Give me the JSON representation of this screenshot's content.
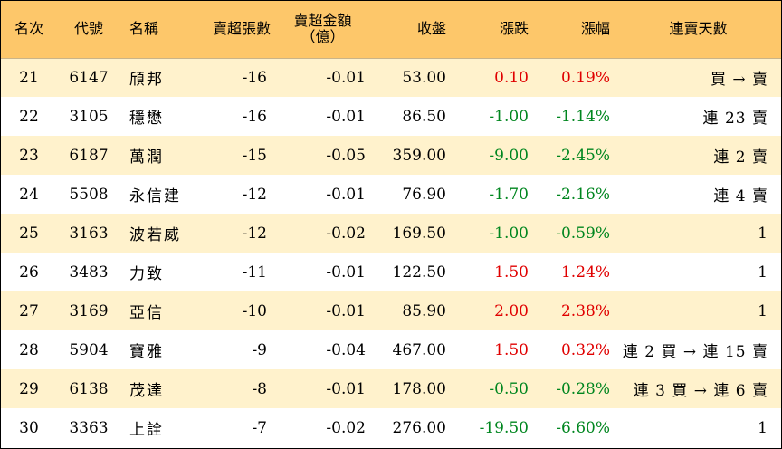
{
  "headers": {
    "rank": "名次",
    "code": "代號",
    "name": "名稱",
    "net_sell_lots": "賣超張數",
    "net_sell_amount_line1": "賣超金額",
    "net_sell_amount_line2": "（億）",
    "close": "收盤",
    "change": "漲跌",
    "change_pct": "漲幅",
    "streak": "連賣天數"
  },
  "colors": {
    "header_bg": "#fdc76a",
    "stripe_bg": "#fff2cc",
    "up": "#e00000",
    "down": "#00861f"
  },
  "rows": [
    {
      "rank": "21",
      "code": "6147",
      "name": "頎邦",
      "lots": "-16",
      "amount": "-0.01",
      "close": "53.00",
      "change": "0.10",
      "pct": "0.19%",
      "dir": "up",
      "streak": "買 → 賣"
    },
    {
      "rank": "22",
      "code": "3105",
      "name": "穩懋",
      "lots": "-16",
      "amount": "-0.01",
      "close": "86.50",
      "change": "-1.00",
      "pct": "-1.14%",
      "dir": "down",
      "streak": "連 23 賣"
    },
    {
      "rank": "23",
      "code": "6187",
      "name": "萬潤",
      "lots": "-15",
      "amount": "-0.05",
      "close": "359.00",
      "change": "-9.00",
      "pct": "-2.45%",
      "dir": "down",
      "streak": "連 2 賣"
    },
    {
      "rank": "24",
      "code": "5508",
      "name": "永信建",
      "lots": "-12",
      "amount": "-0.01",
      "close": "76.90",
      "change": "-1.70",
      "pct": "-2.16%",
      "dir": "down",
      "streak": "連 4 賣"
    },
    {
      "rank": "25",
      "code": "3163",
      "name": "波若威",
      "lots": "-12",
      "amount": "-0.02",
      "close": "169.50",
      "change": "-1.00",
      "pct": "-0.59%",
      "dir": "down",
      "streak": "1"
    },
    {
      "rank": "26",
      "code": "3483",
      "name": "力致",
      "lots": "-11",
      "amount": "-0.01",
      "close": "122.50",
      "change": "1.50",
      "pct": "1.24%",
      "dir": "up",
      "streak": "1"
    },
    {
      "rank": "27",
      "code": "3169",
      "name": "亞信",
      "lots": "-10",
      "amount": "-0.01",
      "close": "85.90",
      "change": "2.00",
      "pct": "2.38%",
      "dir": "up",
      "streak": "1"
    },
    {
      "rank": "28",
      "code": "5904",
      "name": "寶雅",
      "lots": "-9",
      "amount": "-0.04",
      "close": "467.00",
      "change": "1.50",
      "pct": "0.32%",
      "dir": "up",
      "streak": "連 2 買 → 連 15 賣"
    },
    {
      "rank": "29",
      "code": "6138",
      "name": "茂達",
      "lots": "-8",
      "amount": "-0.01",
      "close": "178.00",
      "change": "-0.50",
      "pct": "-0.28%",
      "dir": "down",
      "streak": "連 3 買 → 連 6 賣"
    },
    {
      "rank": "30",
      "code": "3363",
      "name": "上詮",
      "lots": "-7",
      "amount": "-0.02",
      "close": "276.00",
      "change": "-19.50",
      "pct": "-6.60%",
      "dir": "down",
      "streak": "1"
    }
  ]
}
